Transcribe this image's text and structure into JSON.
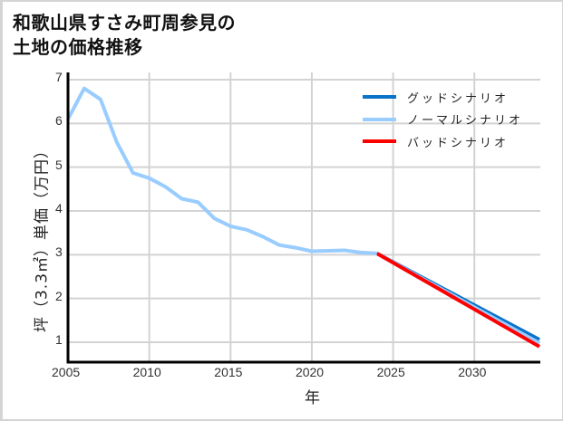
{
  "title": {
    "line1": "和歌山県すさみ町周参見の",
    "line2": "土地の価格推移"
  },
  "axes": {
    "xlabel": "年",
    "ylabel": "坪（3.3㎡）単価（万円）",
    "xticks": [
      "2005",
      "2010",
      "2015",
      "2020",
      "2025",
      "2030"
    ],
    "yticks": [
      "1",
      "2",
      "3",
      "4",
      "5",
      "6",
      "7"
    ]
  },
  "legend": [
    {
      "label": "グッドシナリオ",
      "color": "#0a72c8"
    },
    {
      "label": "ノーマルシナリオ",
      "color": "#99ccff"
    },
    {
      "label": "バッドシナリオ",
      "color": "#ff0000"
    }
  ],
  "chart_data": {
    "type": "line",
    "title": "和歌山県すさみ町周参見の土地の価格推移",
    "xlabel": "年",
    "ylabel": "坪（3.3㎡）単価（万円）",
    "xlim": [
      2005,
      2034
    ],
    "ylim": [
      0.55,
      7
    ],
    "grid": true,
    "legend_position": "upper right",
    "series": [
      {
        "name": "ノーマルシナリオ (実績)",
        "color": "#99ccff",
        "x": [
          2005,
          2006,
          2007,
          2008,
          2009,
          2010,
          2011,
          2012,
          2013,
          2014,
          2015,
          2016,
          2017,
          2018,
          2019,
          2020,
          2021,
          2022,
          2023,
          2024
        ],
        "values": [
          6.1,
          6.8,
          6.55,
          5.57,
          4.87,
          4.75,
          4.55,
          4.28,
          4.2,
          3.83,
          3.65,
          3.57,
          3.41,
          3.22,
          3.16,
          3.08,
          3.09,
          3.1,
          3.05,
          3.03
        ]
      },
      {
        "name": "グッドシナリオ",
        "color": "#0a72c8",
        "x": [
          2024,
          2034
        ],
        "values": [
          3.03,
          1.06
        ]
      },
      {
        "name": "ノーマルシナリオ",
        "color": "#99ccff",
        "x": [
          2024,
          2034
        ],
        "values": [
          3.03,
          0.98
        ]
      },
      {
        "name": "バッドシナリオ",
        "color": "#ff0000",
        "x": [
          2024,
          2034
        ],
        "values": [
          3.03,
          0.9
        ]
      }
    ]
  }
}
